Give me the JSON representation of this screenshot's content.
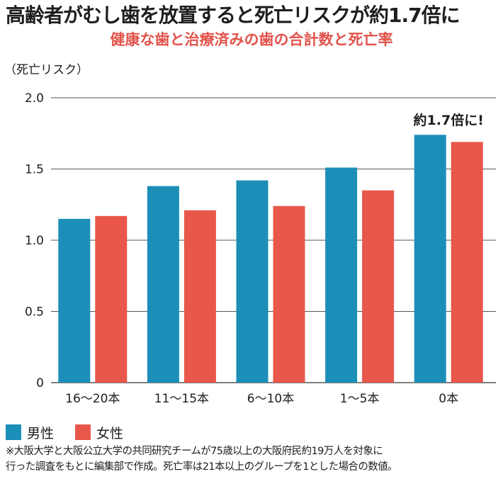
{
  "title": "高齢者がむし歯を放置すると死亡リスクが約1.7倍に",
  "subtitle": "健康な歯と治療済みの歯の合計数と死亡率",
  "colors": {
    "male": "#1b8fb8",
    "female": "#e8574a",
    "subtitle": "#e2534b",
    "grid": "#555555"
  },
  "chart_data": {
    "type": "bar",
    "ylabel": "（死亡リスク）",
    "ylim": [
      0,
      2.0
    ],
    "yticks": [
      "0",
      "0.5",
      "1.0",
      "1.5",
      "2.0"
    ],
    "categories": [
      "16〜20本",
      "11〜15本",
      "6〜10本",
      "1〜5本",
      "0本"
    ],
    "series": [
      {
        "name": "男性",
        "values": [
          1.15,
          1.38,
          1.42,
          1.51,
          1.74
        ]
      },
      {
        "name": "女性",
        "values": [
          1.17,
          1.21,
          1.24,
          1.35,
          1.69
        ]
      }
    ],
    "grid": true,
    "legend": "bottom-left",
    "annotation": "約1.7倍に!"
  },
  "note": {
    "line1": "※大阪大学と大阪公立大学の共同研究チームが75歳以上の大阪府民約19万人を対象に",
    "line2": "行った調査をもとに編集部で作成。死亡率は21本以上のグループを1とした場合の数値。"
  }
}
